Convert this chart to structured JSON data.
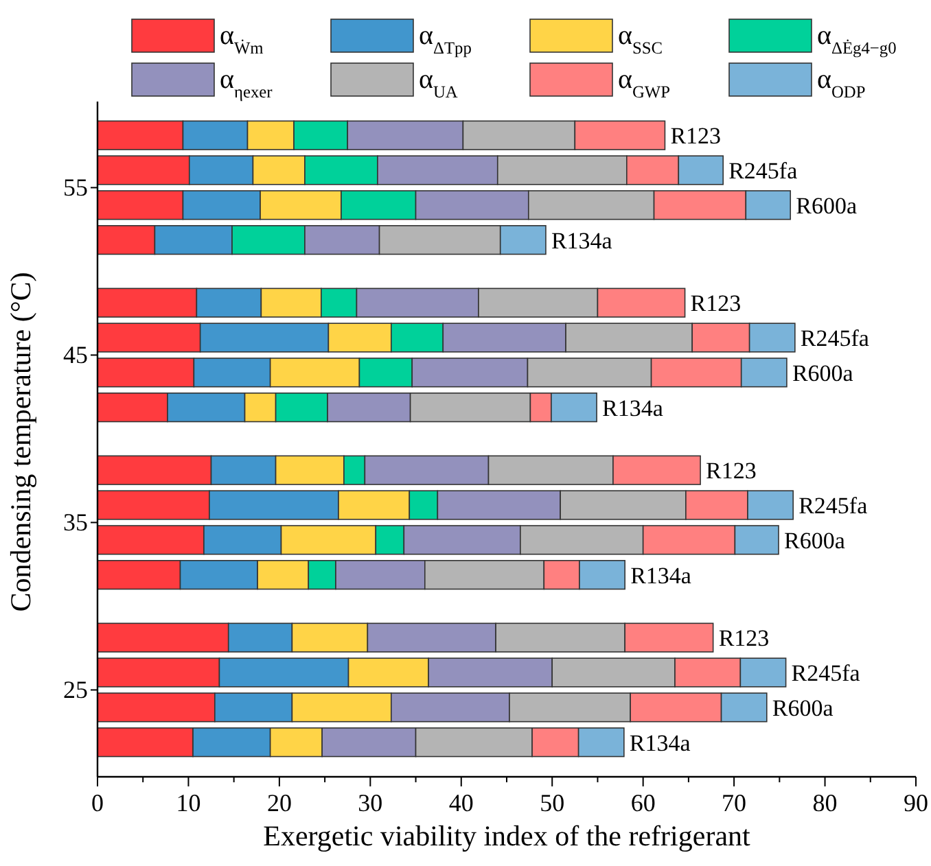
{
  "chart_data": {
    "type": "bar",
    "orientation": "horizontal",
    "stacked": true,
    "xlabel": "Exergetic viability index of the refrigerant",
    "ylabel": "Condensing temperature (°C)",
    "categories": [
      "R123",
      "R245fa",
      "R600a",
      "R134a",
      "R123",
      "R245fa",
      "R600a",
      "R134a",
      "R123",
      "R245fa",
      "R600a",
      "R134a",
      "R123",
      "R245fa",
      "R600a",
      "R134a"
    ],
    "annotations": [
      "55",
      "45",
      "35",
      "25"
    ],
    "xlim": [
      0,
      90
    ],
    "xticks": [
      0,
      10,
      20,
      30,
      40,
      50,
      60,
      70,
      80,
      90
    ],
    "grid": false,
    "legend": "top",
    "series": [
      {
        "name": "α$_{Ẇm}$",
        "color": "#ff3b3f",
        "values": [
          9.4,
          10.1,
          9.4,
          6.3,
          10.9,
          11.3,
          10.6,
          7.7,
          12.5,
          12.3,
          11.7,
          9.1,
          14.4,
          13.4,
          12.9,
          10.5
        ]
      },
      {
        "name": "α$_{ΔTpp}$",
        "color": "#4196cd",
        "values": [
          7.1,
          7.0,
          8.5,
          8.5,
          7.1,
          14.1,
          8.4,
          8.5,
          7.1,
          14.2,
          8.5,
          8.5,
          7.0,
          14.2,
          8.5,
          8.5
        ]
      },
      {
        "name": "α$_{SSC}$",
        "color": "#ffd447",
        "values": [
          5.1,
          5.7,
          8.9,
          null,
          6.6,
          6.9,
          9.8,
          3.4,
          7.5,
          7.8,
          10.4,
          5.6,
          8.3,
          8.8,
          10.9,
          5.7
        ]
      },
      {
        "name": "α$_{ΔĖg4−g0}$",
        "color": "#00d19a",
        "values": [
          5.9,
          8.0,
          8.2,
          8.0,
          3.9,
          5.7,
          5.8,
          5.7,
          2.3,
          3.1,
          3.1,
          3.0,
          null,
          null,
          null,
          null
        ]
      },
      {
        "name": "α$_{ηexer}$",
        "color": "#9391bd",
        "values": [
          12.7,
          13.2,
          12.4,
          8.2,
          13.4,
          13.5,
          12.7,
          9.1,
          13.6,
          13.5,
          12.8,
          9.8,
          14.1,
          13.6,
          13.0,
          10.3
        ]
      },
      {
        "name": "α$_{UA}$",
        "color": "#b4b4b4",
        "values": [
          12.3,
          14.2,
          13.8,
          13.3,
          13.1,
          13.9,
          13.6,
          13.2,
          13.7,
          13.8,
          13.5,
          13.1,
          14.2,
          13.5,
          13.3,
          12.8
        ]
      },
      {
        "name": "α$_{GWP}$",
        "color": "#ff8080",
        "values": [
          9.9,
          5.7,
          10.1,
          null,
          9.6,
          6.3,
          9.9,
          2.3,
          9.6,
          6.8,
          10.1,
          3.9,
          9.7,
          7.2,
          10.0,
          5.1
        ]
      },
      {
        "name": "α$_{ODP}$",
        "color": "#7ab3d9",
        "values": [
          null,
          4.9,
          4.9,
          5.0,
          null,
          5.0,
          5.0,
          5.0,
          null,
          5.0,
          4.8,
          5.0,
          null,
          5.0,
          5.0,
          5.0
        ]
      }
    ]
  }
}
